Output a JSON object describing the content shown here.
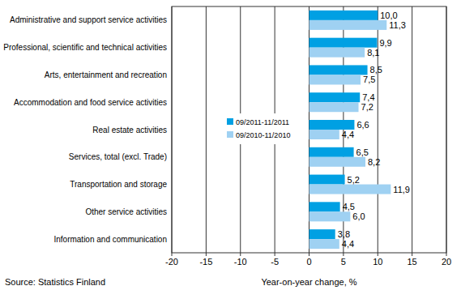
{
  "chart_data": {
    "type": "bar",
    "orientation": "horizontal",
    "categories": [
      "Administrative and support service activities",
      "Professional, scientific and technical activities",
      "Arts, entertainment and recreation",
      "Accommodation and food service activities",
      "Real estate activities",
      "Services, total (excl. Trade)",
      "Transportation and storage",
      "Other service activities",
      "Information and communication"
    ],
    "series": [
      {
        "name": "09/2011-11/2011",
        "color": "#00a0e3",
        "values": [
          10.0,
          9.9,
          8.5,
          7.4,
          6.6,
          6.5,
          5.2,
          4.5,
          3.8
        ],
        "value_labels": [
          "10,0",
          "9,9",
          "8,5",
          "7,4",
          "6,6",
          "6,5",
          "5,2",
          "4,5",
          "3,8"
        ]
      },
      {
        "name": "09/2010-11/2010",
        "color": "#9fd1f2",
        "values": [
          11.3,
          8.1,
          7.5,
          7.2,
          4.4,
          8.2,
          11.9,
          6.0,
          4.4
        ],
        "value_labels": [
          "11,3",
          "8,1",
          "7,5",
          "7,2",
          "4,4",
          "8,2",
          "11,9",
          "6,0",
          "4,4"
        ]
      }
    ],
    "x_label": "Year-on-year change, %",
    "annotations": [
      "Source: Statistics Finland"
    ],
    "xlim": [
      -20,
      20
    ],
    "xticks": [
      -20,
      -15,
      -10,
      -5,
      0,
      5,
      10,
      15,
      20
    ],
    "grid": true,
    "legend": "left",
    "data_labels": true
  }
}
